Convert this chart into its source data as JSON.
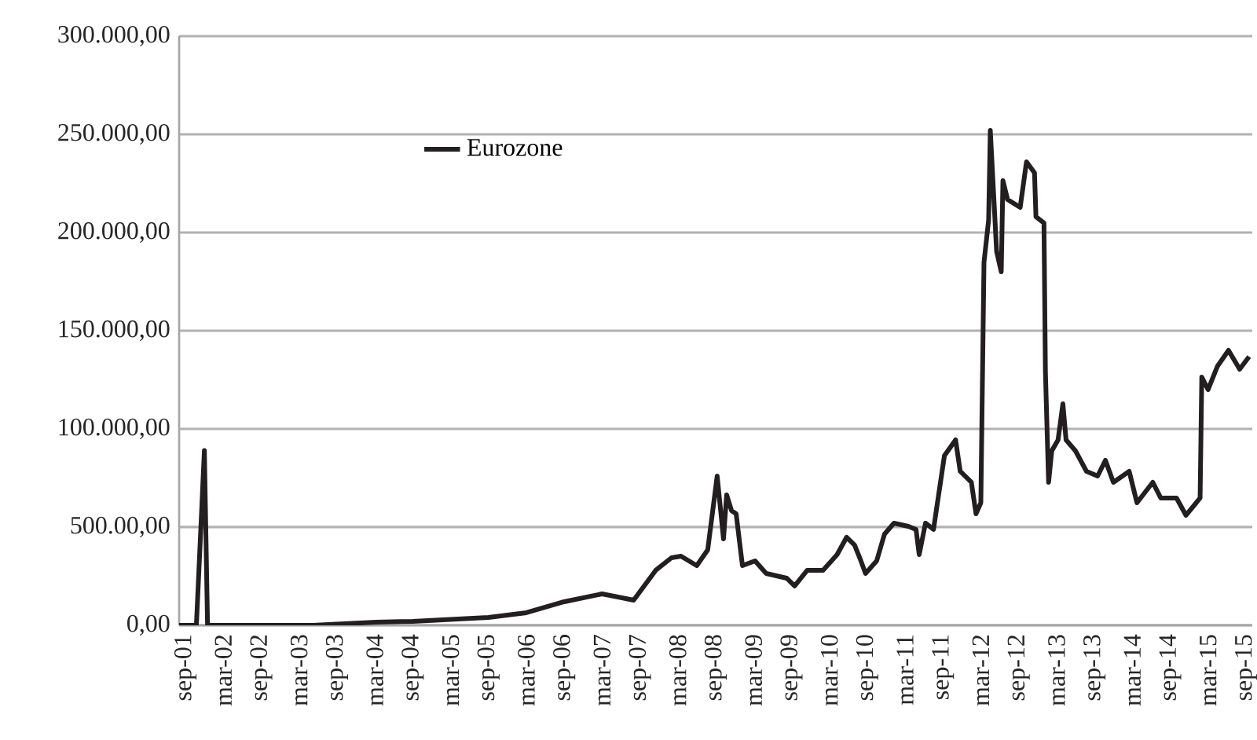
{
  "chart_data": {
    "type": "line",
    "legend": "top left",
    "grid": "y",
    "line_style": "solid",
    "marker": "none",
    "xlim": [
      "2001-08",
      "2015-10"
    ],
    "xticks": [
      {
        "value": "2001-09",
        "label": "sep-01"
      },
      {
        "value": "2002-03",
        "label": "mar-02"
      },
      {
        "value": "2002-09",
        "label": "sep-02"
      },
      {
        "value": "2003-03",
        "label": "mar-03"
      },
      {
        "value": "2003-09",
        "label": "sep-03"
      },
      {
        "value": "2004-03",
        "label": "mar-04"
      },
      {
        "value": "2004-09",
        "label": "sep-04"
      },
      {
        "value": "2005-03",
        "label": "mar-05"
      },
      {
        "value": "2005-09",
        "label": "sep-05"
      },
      {
        "value": "2006-03",
        "label": "mar-06"
      },
      {
        "value": "2006-09",
        "label": "sep-06"
      },
      {
        "value": "2007-03",
        "label": "mar-07"
      },
      {
        "value": "2007-09",
        "label": "sep-07"
      },
      {
        "value": "2008-03",
        "label": "mar-08"
      },
      {
        "value": "2008-09",
        "label": "sep-08"
      },
      {
        "value": "2009-03",
        "label": "mar-09"
      },
      {
        "value": "2009-09",
        "label": "sep-09"
      },
      {
        "value": "2010-03",
        "label": "mar-10"
      },
      {
        "value": "2010-09",
        "label": "sep-10"
      },
      {
        "value": "2011-03",
        "label": "mar-11"
      },
      {
        "value": "2011-09",
        "label": "sep-11"
      },
      {
        "value": "2012-03",
        "label": "mar-12"
      },
      {
        "value": "2012-09",
        "label": "sep-12"
      },
      {
        "value": "2013-03",
        "label": "mar-13"
      },
      {
        "value": "2013-09",
        "label": "sep-13"
      },
      {
        "value": "2014-03",
        "label": "mar-14"
      },
      {
        "value": "2014-09",
        "label": "sep-14"
      },
      {
        "value": "2015-03",
        "label": "mar-15"
      },
      {
        "value": "2015-09",
        "label": "sep-15"
      }
    ],
    "ylim": [
      0,
      300000
    ],
    "yticks": [
      {
        "value": 0,
        "label": "0,00"
      },
      {
        "value": 50000,
        "label": "500.00,00"
      },
      {
        "value": 100000,
        "label": "100.000,00"
      },
      {
        "value": 150000,
        "label": "150.000,00"
      },
      {
        "value": 200000,
        "label": "200.000,00"
      },
      {
        "value": 250000,
        "label": "250.000,00"
      },
      {
        "value": 300000,
        "label": "300.000,00"
      }
    ],
    "x": [
      "2001-08-01",
      "2001-10-23",
      "2001-12-01",
      "2001-12-16",
      "2003-05-08",
      "2004-03-08",
      "2004-09-01",
      "2005-09-01",
      "2006-03-01",
      "2006-09-01",
      "2007-03-01",
      "2007-08-01",
      "2007-11-16",
      "2008-02-01",
      "2008-03-16",
      "2008-06-01",
      "2008-07-23",
      "2008-09-08",
      "2008-10-08",
      "2008-10-23",
      "2008-11-16",
      "2008-12-08",
      "2009-01-08",
      "2009-03-08",
      "2009-05-01",
      "2009-08-08",
      "2009-09-16",
      "2009-11-16",
      "2010-02-01",
      "2010-04-08",
      "2010-05-23",
      "2010-07-01",
      "2010-08-01",
      "2010-08-23",
      "2010-10-16",
      "2010-11-23",
      "2011-01-08",
      "2011-03-16",
      "2011-04-23",
      "2011-05-08",
      "2011-06-08",
      "2011-07-16",
      "2011-09-08",
      "2011-11-01",
      "2011-11-23",
      "2012-01-16",
      "2012-02-08",
      "2012-03-01",
      "2012-03-16",
      "2012-04-08",
      "2012-04-16",
      "2012-05-16",
      "2012-06-08",
      "2012-06-16",
      "2012-07-08",
      "2012-09-08",
      "2012-10-08",
      "2012-11-16",
      "2012-11-23",
      "2013-01-01",
      "2013-01-08",
      "2013-01-23",
      "2013-02-08",
      "2013-03-08",
      "2013-04-01",
      "2013-04-16",
      "2013-06-01",
      "2013-07-23",
      "2013-09-16",
      "2013-10-23",
      "2013-12-01",
      "2014-02-16",
      "2014-03-23",
      "2014-06-08",
      "2014-07-16",
      "2014-10-01",
      "2014-11-16",
      "2015-01-23",
      "2015-02-01",
      "2015-03-01",
      "2015-04-16",
      "2015-06-08",
      "2015-08-01",
      "2015-09-16"
    ],
    "series": [
      {
        "name": "Eurozone",
        "color": "#231f20",
        "values": [
          0,
          0,
          89000,
          0,
          0,
          1600,
          2000,
          4000,
          6400,
          12000,
          16000,
          12800,
          28000,
          34400,
          35200,
          30400,
          38400,
          76000,
          44000,
          66400,
          58400,
          56800,
          30400,
          32800,
          26400,
          24000,
          20000,
          28000,
          28000,
          36000,
          44800,
          40800,
          32800,
          26400,
          32800,
          46400,
          52000,
          50400,
          48800,
          36000,
          52000,
          48800,
          86400,
          94400,
          78400,
          72800,
          56800,
          62400,
          184800,
          206400,
          252000,
          190400,
          180000,
          226400,
          216800,
          212800,
          236000,
          230400,
          208000,
          204800,
          128800,
          72800,
          88800,
          94400,
          112800,
          94400,
          88800,
          78400,
          76000,
          84000,
          72800,
          78400,
          62400,
          72800,
          64800,
          64800,
          56000,
          64800,
          126400,
          120000,
          132000,
          140000,
          130400,
          136800
        ]
      }
    ]
  }
}
